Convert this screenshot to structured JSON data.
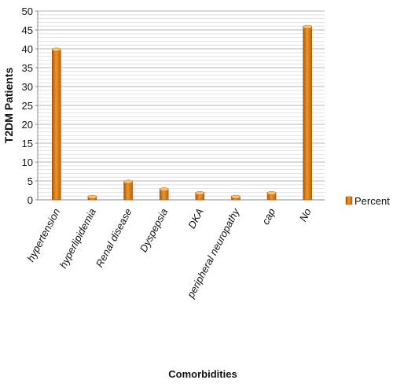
{
  "chart_data": {
    "type": "bar",
    "categories": [
      "hypertension",
      "hyperlipidemia",
      "Renal disease",
      "Dyspepsia",
      "DKA",
      "peripheral neuropathy",
      "cap",
      "No"
    ],
    "series": [
      {
        "name": "Percent",
        "values": [
          40,
          1,
          5,
          3,
          2,
          1,
          2,
          46
        ]
      }
    ],
    "xlabel": "Comorbidities",
    "ylabel": "T2DM Patients",
    "ylim": [
      0,
      50
    ],
    "yticks": [
      0,
      5,
      10,
      15,
      20,
      25,
      30,
      35,
      40,
      45,
      50
    ],
    "grid": true,
    "legend_position": "right",
    "colors": {
      "bar": "#e07f18",
      "bar_dark": "#a8560a",
      "bar_light": "#f6bf6a",
      "grid": "#bdbdbd"
    }
  }
}
